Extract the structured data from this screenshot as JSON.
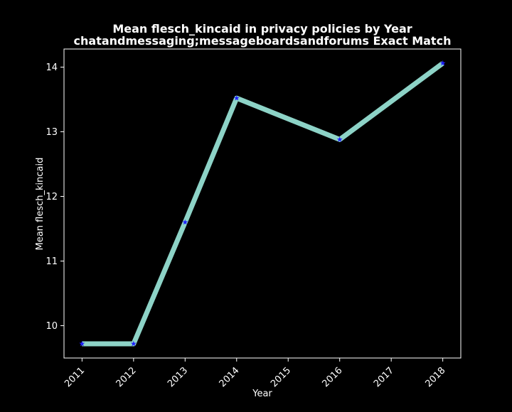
{
  "chart_data": {
    "type": "line",
    "title_line1": "Mean flesch_kincaid in privacy policies by Year",
    "title_line2": "chatandmessaging;messageboardsandforums Exact Match",
    "xlabel": "Year",
    "ylabel": "Mean flesch_kincaid",
    "x": [
      2011,
      2012,
      2013,
      2014,
      2016,
      2018
    ],
    "y": [
      9.72,
      9.72,
      11.6,
      13.52,
      12.88,
      14.06
    ],
    "x_ticks": [
      2011,
      2012,
      2013,
      2014,
      2015,
      2016,
      2017,
      2018
    ],
    "y_ticks": [
      10,
      11,
      12,
      13,
      14
    ],
    "xlim": [
      2010.65,
      2018.35
    ],
    "ylim": [
      9.5,
      14.28
    ],
    "grid": false,
    "line_color": "#8dd3c7",
    "marker_color": "#1f1fff",
    "marker": "star",
    "background": "#000000",
    "text_color": "#ffffff"
  }
}
